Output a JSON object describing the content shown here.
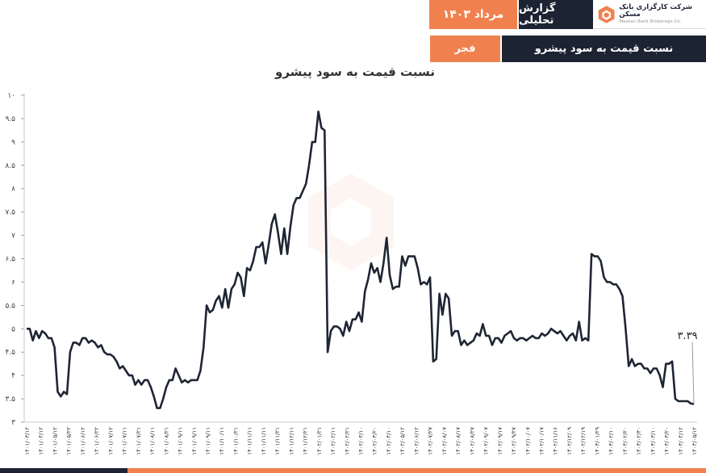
{
  "header": {
    "company_name": "شرکت کارگزاری بانک مسکن",
    "company_name_en": "Maskan Bank Brokerage Co.",
    "report_type": "گزارش تحلیلی",
    "report_date": "مرداد ۱۴۰۳",
    "topic": "نسبت قیمت به سود پیشرو",
    "symbol": "فجر"
  },
  "colors": {
    "navy": "#1c2333",
    "orange": "#f0814e",
    "line": "#1e2533"
  },
  "chart_data": {
    "type": "line",
    "title": "نسبت قیمت به سود پیشرو",
    "xlabel": "",
    "ylabel": "",
    "ylim": [
      3,
      10
    ],
    "yticks": [
      "۳",
      "۳.۵",
      "۴",
      "۴.۵",
      "۵",
      "۵.۵",
      "۶",
      "۶.۵",
      "۷",
      "۷.۵",
      "۸",
      "۸.۵",
      "۹",
      "۹.۵",
      "۱۰"
    ],
    "xticks": [
      "۱۴۰۱/۰۳/۱۲",
      "۱۴۰۱/۰۴/۱۲",
      "۱۴۰۱/۰۵/۱۲",
      "۱۴۰۱/۰۵/۲۲",
      "۱۴۰۱/۰۶/۱۲",
      "۱۴۰۱/۰۶/۲۲",
      "۱۴۰۱/۰۷/۱۲",
      "۱۴۰۱/۰۷/۱۱",
      "۱۴۰۱/۰۷/۲۱",
      "۱۴۰۱/۰۸/۱۱",
      "۱۴۰۱/۰۸/۲۱",
      "۱۴۰۱/۰۹/۱۱",
      "۱۴۰۱/۰۹/۱۱",
      "۱۴۰۱/۰۹/۱۱",
      "۱۴۰۱/۱۰/۱۱",
      "۱۴۰۱/۱۰/۲۱",
      "۱۴۰۱/۱۱/۱۱",
      "۱۴۰۱/۱۱/۱۱",
      "۱۴۰۱/۱۱/۲۱",
      "۱۴۰۱/۱۲/۱۱",
      "۱۴۰۱/۱۲/۲۱",
      "۱۴۰۲/۰۱/۲۱",
      "۱۴۰۲/۰۲/۱۱",
      "۱۴۰۲/۰۲/۲۱",
      "۱۴۰۲/۰۳/۱۰",
      "۱۴۰۲/۰۳/۲۰",
      "۱۴۰۲/۰۴/۱۰",
      "۱۴۰۲/۰۵/۱۲",
      "۱۴۰۲/۰۶/۱۲",
      "۱۴۰۲/۰۷/۲۷",
      "۱۴۰۲/۰۸/۰۷",
      "۱۴۰۲/۰۸/۱۷",
      "۱۴۰۲/۰۸/۲۷",
      "۱۴۰۲/۰۹/۰۷",
      "۱۴۰۲/۰۹/۱۷",
      "۱۴۰۲/۰۹/۲۷",
      "۱۴۰۲/۱۰/۰۷",
      "۱۴۰۲/۱۰/۱۷",
      "۱۴۰۲/۱۱/۱۶",
      "۱۴۰۲/۱۲/۰۹",
      "۱۴۰۲/۱۲/۱۹",
      "۱۴۰۳/۰۱/۲۹",
      "۱۴۰۳/۰۲/۱۰",
      "۱۴۰۳/۰۲/۲۰",
      "۱۴۰۳/۰۲/۳۰",
      "۱۴۰۳/۰۳/۱۰",
      "۱۴۰۳/۰۳/۲۰",
      "۱۴۰۳/۰۴/۱۲",
      "۱۴۰۳/۰۵/۱۲"
    ],
    "series": [
      {
        "values": [
          5.0,
          5.0,
          4.75,
          4.95,
          4.8,
          4.95,
          4.9,
          4.8,
          4.8,
          4.6,
          3.65,
          3.55,
          3.65,
          3.6,
          4.5,
          4.7,
          4.7,
          4.65,
          4.8,
          4.8,
          4.7,
          4.75,
          4.7,
          4.6,
          4.65,
          4.5,
          4.45,
          4.45,
          4.4,
          4.3,
          4.15,
          4.2,
          4.1,
          4.0,
          4.0,
          3.8,
          3.9,
          3.8,
          3.9,
          3.9,
          3.75,
          3.55,
          3.3,
          3.3,
          3.5,
          3.75,
          3.9,
          3.9,
          4.15,
          4.0,
          3.85,
          3.9,
          3.85,
          3.9,
          3.9,
          3.9,
          4.1,
          4.6,
          5.5,
          5.35,
          5.4,
          5.6,
          5.7,
          5.45,
          5.85,
          5.45,
          5.85,
          5.95,
          6.2,
          6.1,
          5.7,
          6.3,
          6.25,
          6.45,
          6.75,
          6.75,
          6.85,
          6.4,
          6.8,
          7.25,
          7.45,
          7.05,
          6.6,
          7.15,
          6.6,
          7.2,
          7.65,
          7.8,
          7.8,
          7.95,
          8.1,
          8.5,
          9.0,
          9.0,
          9.65,
          9.3,
          9.25,
          4.5,
          4.95,
          5.05,
          5.05,
          5.0,
          4.85,
          5.15,
          4.95,
          5.2,
          5.2,
          5.35,
          5.15,
          5.8,
          6.05,
          6.4,
          6.2,
          6.3,
          6.0,
          6.4,
          6.95,
          6.15,
          5.85,
          5.9,
          5.9,
          6.55,
          6.35,
          6.55,
          6.55,
          6.55,
          6.3,
          5.95,
          6.0,
          5.95,
          6.1,
          4.3,
          4.35,
          5.75,
          5.3,
          5.75,
          5.65,
          4.85,
          4.95,
          4.95,
          4.65,
          4.75,
          4.65,
          4.7,
          4.75,
          4.9,
          4.85,
          5.1,
          4.85,
          4.85,
          4.65,
          4.8,
          4.8,
          4.7,
          4.85,
          4.9,
          4.95,
          4.8,
          4.75,
          4.8,
          4.8,
          4.75,
          4.8,
          4.85,
          4.8,
          4.8,
          4.9,
          4.85,
          4.9,
          5.0,
          4.95,
          4.9,
          4.95,
          4.85,
          4.75,
          4.85,
          4.9,
          4.75,
          5.15,
          4.75,
          4.8,
          4.75,
          6.6,
          6.55,
          6.55,
          6.45,
          6.1,
          6.0,
          6.0,
          5.95,
          5.95,
          5.85,
          5.7,
          5.0,
          4.2,
          4.35,
          4.2,
          4.25,
          4.25,
          4.15,
          4.15,
          4.05,
          4.15,
          4.15,
          4.0,
          3.75,
          4.25,
          4.25,
          4.3,
          3.5,
          3.45,
          3.45,
          3.45,
          3.45,
          3.4,
          3.39
        ]
      }
    ],
    "last_value_label": "۳.۳۹"
  }
}
